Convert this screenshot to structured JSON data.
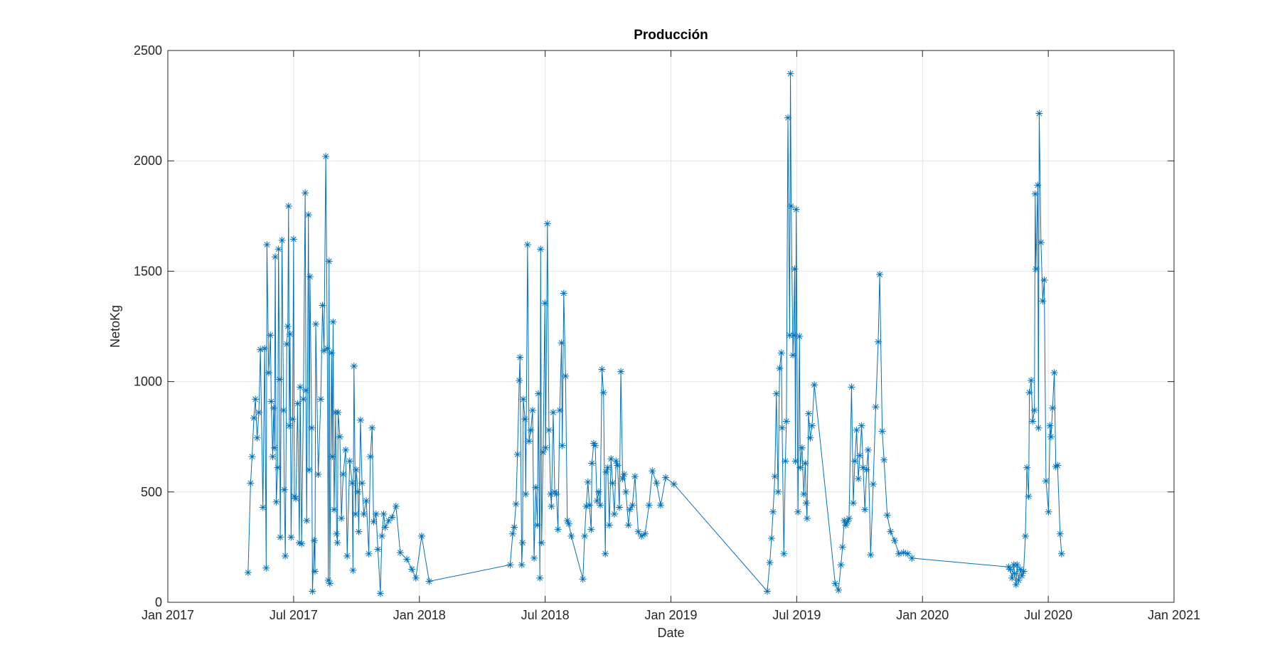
{
  "chart_data": {
    "type": "line",
    "title": "Producción",
    "x_label": "Date",
    "y_label": "NetoKg",
    "marker": "asterisk",
    "grid": true,
    "xlim": [
      2017,
      2021
    ],
    "xticks": [
      {
        "value": 2017,
        "label": "Jan 2017"
      },
      {
        "value": 2017.5,
        "label": "Jul 2017"
      },
      {
        "value": 2018,
        "label": "Jan 2018"
      },
      {
        "value": 2018.5,
        "label": "Jul 2018"
      },
      {
        "value": 2019,
        "label": "Jan 2019"
      },
      {
        "value": 2019.5,
        "label": "Jul 2019"
      },
      {
        "value": 2020,
        "label": "Jan 2020"
      },
      {
        "value": 2020.5,
        "label": "Jul 2020"
      },
      {
        "value": 2021,
        "label": "Jan 2021"
      }
    ],
    "ylim": [
      0,
      2500
    ],
    "yticks": [
      0,
      500,
      1000,
      1500,
      2000,
      2500
    ],
    "x": [
      2017.319,
      2017.329,
      2017.335,
      2017.342,
      2017.348,
      2017.355,
      2017.362,
      2017.368,
      2017.378,
      2017.385,
      2017.391,
      2017.394,
      2017.401,
      2017.408,
      2017.411,
      2017.417,
      2017.421,
      2017.424,
      2017.427,
      2017.431,
      2017.437,
      2017.44,
      2017.444,
      2017.447,
      2017.454,
      2017.46,
      2017.463,
      2017.467,
      2017.473,
      2017.477,
      2017.48,
      2017.483,
      2017.486,
      2017.49,
      2017.496,
      2017.5,
      2017.503,
      2017.509,
      2017.516,
      2017.523,
      2017.526,
      2017.532,
      2017.539,
      2017.546,
      2017.549,
      2017.552,
      2017.559,
      2017.562,
      2017.565,
      2017.572,
      2017.575,
      2017.582,
      2017.585,
      2017.588,
      2017.598,
      2017.608,
      2017.615,
      2017.621,
      2017.628,
      2017.634,
      2017.638,
      2017.641,
      2017.644,
      2017.651,
      2017.654,
      2017.657,
      2017.661,
      2017.667,
      2017.671,
      2017.674,
      2017.677,
      2017.684,
      2017.69,
      2017.697,
      2017.707,
      2017.713,
      2017.723,
      2017.733,
      2017.736,
      2017.74,
      2017.746,
      2017.749,
      2017.756,
      2017.759,
      2017.766,
      2017.772,
      2017.779,
      2017.789,
      2017.799,
      2017.805,
      2017.812,
      2017.818,
      2017.828,
      2017.835,
      2017.845,
      2017.851,
      2017.858,
      2017.864,
      2017.878,
      2017.891,
      2017.907,
      2017.924,
      2017.95,
      2017.97,
      2017.986,
      2018.009,
      2018.039,
      2018.361,
      2018.371,
      2018.377,
      2018.384,
      2018.39,
      2018.397,
      2018.4,
      2018.407,
      2018.41,
      2018.413,
      2018.42,
      2018.423,
      2018.43,
      2018.436,
      2018.443,
      2018.45,
      2018.456,
      2018.463,
      2018.469,
      2018.473,
      2018.479,
      2018.482,
      2018.486,
      2018.492,
      2018.499,
      2018.502,
      2018.509,
      2018.515,
      2018.522,
      2018.525,
      2018.532,
      2018.538,
      2018.545,
      2018.551,
      2018.558,
      2018.565,
      2018.568,
      2018.574,
      2018.581,
      2018.588,
      2018.594,
      2018.604,
      2018.65,
      2018.657,
      2018.663,
      2018.67,
      2018.676,
      2018.683,
      2018.686,
      2018.693,
      2018.699,
      2018.706,
      2018.713,
      2018.719,
      2018.726,
      2018.732,
      2018.739,
      2018.742,
      2018.749,
      2018.755,
      2018.762,
      2018.768,
      2018.775,
      2018.782,
      2018.788,
      2018.795,
      2018.801,
      2018.808,
      2018.814,
      2018.821,
      2018.831,
      2018.837,
      2018.847,
      2018.857,
      2018.87,
      2018.883,
      2018.897,
      2018.913,
      2018.926,
      2018.943,
      2018.959,
      2018.979,
      2019.012,
      2019.383,
      2019.393,
      2019.4,
      2019.406,
      2019.413,
      2019.419,
      2019.426,
      2019.432,
      2019.439,
      2019.442,
      2019.449,
      2019.455,
      2019.459,
      2019.465,
      2019.472,
      2019.475,
      2019.478,
      2019.485,
      2019.488,
      2019.492,
      2019.495,
      2019.498,
      2019.505,
      2019.511,
      2019.514,
      2019.521,
      2019.528,
      2019.534,
      2019.538,
      2019.541,
      2019.547,
      2019.554,
      2019.561,
      2019.57,
      2019.653,
      2019.666,
      2019.676,
      2019.682,
      2019.689,
      2019.695,
      2019.702,
      2019.708,
      2019.718,
      2019.725,
      2019.731,
      2019.738,
      2019.745,
      2019.751,
      2019.758,
      2019.764,
      2019.771,
      2019.778,
      2019.784,
      2019.794,
      2019.804,
      2019.814,
      2019.824,
      2019.83,
      2019.84,
      2019.847,
      2019.86,
      2019.873,
      2019.889,
      2019.906,
      2019.925,
      2019.942,
      2019.958,
      2020.343,
      2020.349,
      2020.356,
      2020.363,
      2020.366,
      2020.372,
      2020.376,
      2020.382,
      2020.389,
      2020.395,
      2020.402,
      2020.409,
      2020.415,
      2020.422,
      2020.425,
      2020.432,
      2020.438,
      2020.445,
      2020.448,
      2020.451,
      2020.458,
      2020.461,
      2020.464,
      2020.471,
      2020.478,
      2020.484,
      2020.491,
      2020.501,
      2020.507,
      2020.511,
      2020.517,
      2020.524,
      2020.53,
      2020.537,
      2020.547,
      2020.553
    ],
    "series": [
      {
        "name": "NetoKg",
        "color": "#0072bd",
        "values": [
          135,
          540,
          660,
          835,
          920,
          745,
          860,
          1145,
          430,
          1150,
          155,
          1620,
          1040,
          1210,
          910,
          660,
          880,
          700,
          1565,
          455,
          610,
          1600,
          1010,
          295,
          1640,
          870,
          510,
          210,
          1170,
          1250,
          1795,
          800,
          1215,
          295,
          830,
          1645,
          480,
          470,
          900,
          270,
          975,
          265,
          920,
          1855,
          960,
          370,
          1755,
          600,
          1475,
          790,
          50,
          280,
          140,
          1260,
          580,
          920,
          1345,
          1140,
          2020,
          1150,
          100,
          1545,
          85,
          1130,
          660,
          1270,
          420,
          860,
          310,
          270,
          860,
          750,
          380,
          580,
          690,
          210,
          640,
          540,
          145,
          1070,
          400,
          600,
          500,
          320,
          825,
          540,
          400,
          460,
          220,
          660,
          790,
          365,
          400,
          240,
          40,
          300,
          400,
          340,
          370,
          385,
          435,
          225,
          195,
          150,
          110,
          300,
          95,
          170,
          310,
          340,
          445,
          670,
          1005,
          1110,
          170,
          270,
          920,
          830,
          490,
          1620,
          730,
          780,
          870,
          200,
          520,
          350,
          945,
          110,
          1600,
          270,
          680,
          1355,
          700,
          1715,
          780,
          490,
          435,
          860,
          500,
          490,
          330,
          870,
          1175,
          710,
          1400,
          1025,
          370,
          355,
          300,
          105,
          300,
          435,
          545,
          440,
          330,
          630,
          720,
          710,
          460,
          500,
          440,
          1055,
          950,
          220,
          590,
          610,
          350,
          650,
          540,
          400,
          640,
          620,
          430,
          1045,
          560,
          580,
          500,
          350,
          420,
          440,
          570,
          320,
          300,
          310,
          440,
          595,
          540,
          440,
          565,
          535,
          50,
          180,
          290,
          410,
          570,
          945,
          500,
          1060,
          1130,
          790,
          220,
          640,
          820,
          2195,
          1210,
          2395,
          1795,
          1120,
          1210,
          1510,
          640,
          1780,
          410,
          1205,
          610,
          700,
          490,
          630,
          450,
          380,
          855,
          745,
          800,
          985,
          85,
          55,
          170,
          250,
          370,
          350,
          365,
          380,
          975,
          450,
          640,
          780,
          560,
          665,
          800,
          610,
          420,
          600,
          690,
          215,
          535,
          885,
          1180,
          1485,
          775,
          645,
          395,
          320,
          280,
          220,
          225,
          220,
          200,
          160,
          150,
          110,
          170,
          130,
          80,
          170,
          100,
          150,
          120,
          140,
          300,
          610,
          480,
          950,
          1005,
          820,
          870,
          1850,
          1510,
          1890,
          790,
          2215,
          1630,
          1365,
          1460,
          550,
          410,
          800,
          750,
          880,
          1040,
          615,
          620,
          310,
          220
        ]
      }
    ]
  }
}
